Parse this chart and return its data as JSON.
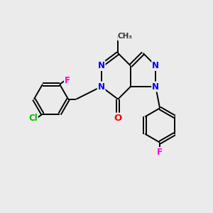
{
  "bg_color": "#ebebeb",
  "bond_color": "#000000",
  "bond_width": 1.4,
  "atom_colors": {
    "N": "#0000ff",
    "O": "#ff0000",
    "F": "#ff00cc",
    "Cl": "#00bb00",
    "C": "#000000"
  },
  "font_size_atom": 8.5
}
